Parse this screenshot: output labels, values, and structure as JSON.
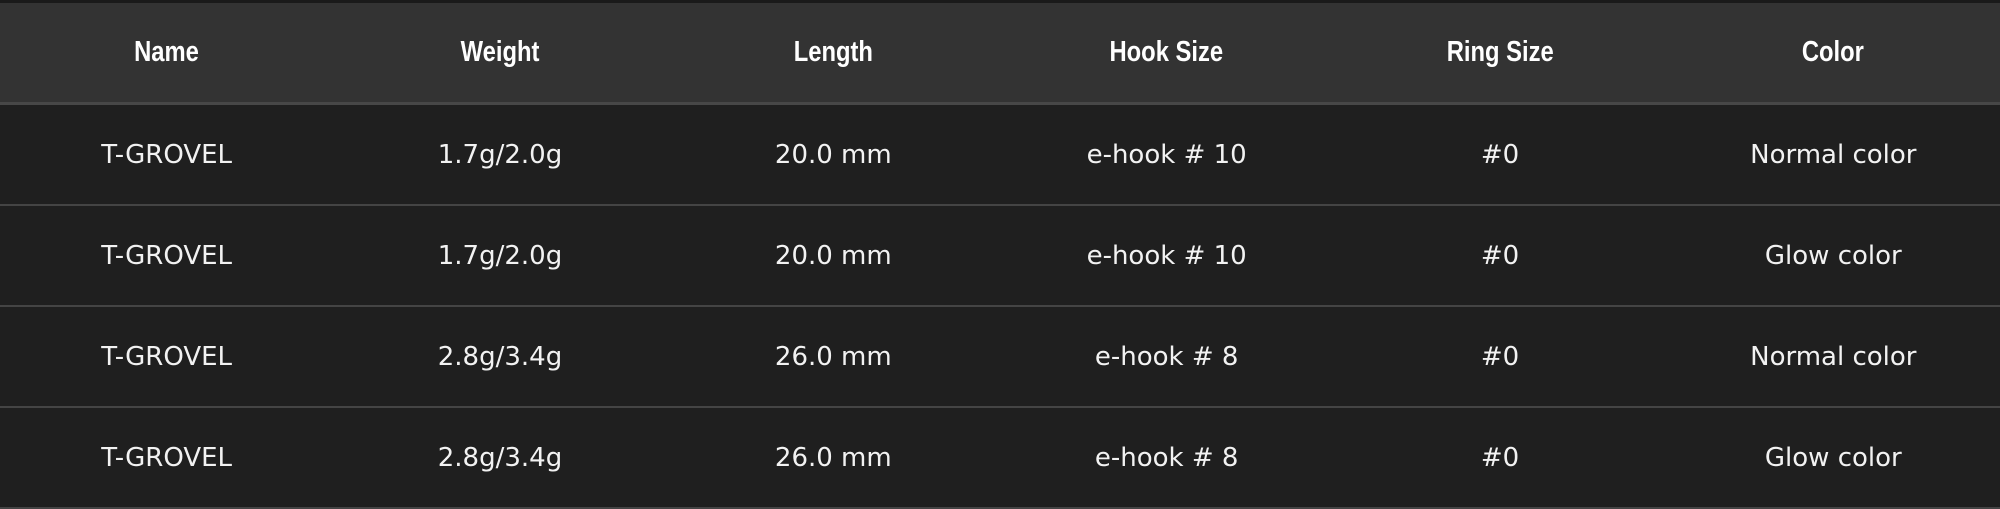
{
  "table": {
    "headers": [
      "Name",
      "Weight",
      "Length",
      "Hook Size",
      "Ring Size",
      "Color"
    ],
    "rows": [
      [
        "T-GROVEL",
        "1.7g/2.0g",
        "20.0 mm",
        "e-hook # 10",
        "#0",
        "Normal color"
      ],
      [
        "T-GROVEL",
        "1.7g/2.0g",
        "20.0 mm",
        "e-hook # 10",
        "#0",
        "Glow color"
      ],
      [
        "T-GROVEL",
        "2.8g/3.4g",
        "26.0 mm",
        "e-hook # 8",
        "#0",
        "Normal color"
      ],
      [
        "T-GROVEL",
        "2.8g/3.4g",
        "26.0 mm",
        "e-hook # 8",
        "#0",
        "Glow color"
      ]
    ]
  },
  "colors": {
    "header_bg": "#333333",
    "row_bg": "#1f1f1f",
    "text": "#ffffff"
  }
}
